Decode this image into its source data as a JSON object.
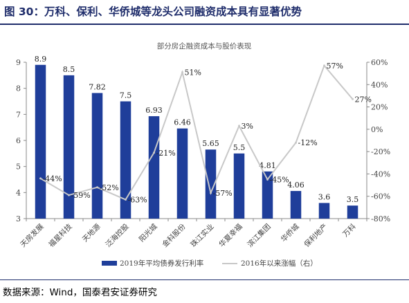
{
  "figure_title": "图 30：万科、保利、华侨城等龙头公司融资成本具有显著优势",
  "source": "数据来源：Wind，国泰君安证券研究",
  "colors": {
    "bar": "#1f3e9a",
    "line": "#c8c8c8",
    "text": "#444444",
    "title": "#1f2d6b"
  },
  "chart_data": {
    "type": "bar",
    "title": "部分房企融资成本与股价表现",
    "categories": [
      "天房发展",
      "福星科技",
      "天地源",
      "泛海控股",
      "阳光城",
      "金科股份",
      "珠江实业",
      "华夏幸福",
      "滨江集团",
      "华侨城",
      "保利地产",
      "万科"
    ],
    "series": [
      {
        "name": "2019年平均债券发行利率",
        "type": "bar",
        "axis": "left",
        "values": [
          8.9,
          8.5,
          7.82,
          7.5,
          6.93,
          6.46,
          5.65,
          5.5,
          4.81,
          4.06,
          3.6,
          3.5
        ],
        "labels": [
          "8.9",
          "8.5",
          "7.82",
          "7.5",
          "6.93",
          "6.46",
          "5.65",
          "5.5",
          "4.81",
          "4.06",
          "3.6",
          "3.5"
        ]
      },
      {
        "name": "2016年以来涨幅（右）",
        "type": "line",
        "axis": "right",
        "values": [
          -44,
          -59,
          -52,
          -63,
          -21,
          51,
          -57,
          3,
          -45,
          -12,
          57,
          27
        ],
        "labels": [
          "-44%",
          "-59%",
          "-52%",
          "-63%",
          "-21%",
          "51%",
          "-57%",
          "3%",
          "-45%",
          "-12%",
          "57%",
          "27%"
        ]
      }
    ],
    "y_left": {
      "min": 3,
      "max": 9,
      "ticks": [
        "3",
        "4",
        "5",
        "6",
        "7",
        "8",
        "9"
      ]
    },
    "y_right": {
      "min": -80,
      "max": 60,
      "ticks": [
        "-80%",
        "-60%",
        "-40%",
        "-20%",
        "0%",
        "20%",
        "40%",
        "60%"
      ]
    },
    "legend_position": "bottom"
  }
}
